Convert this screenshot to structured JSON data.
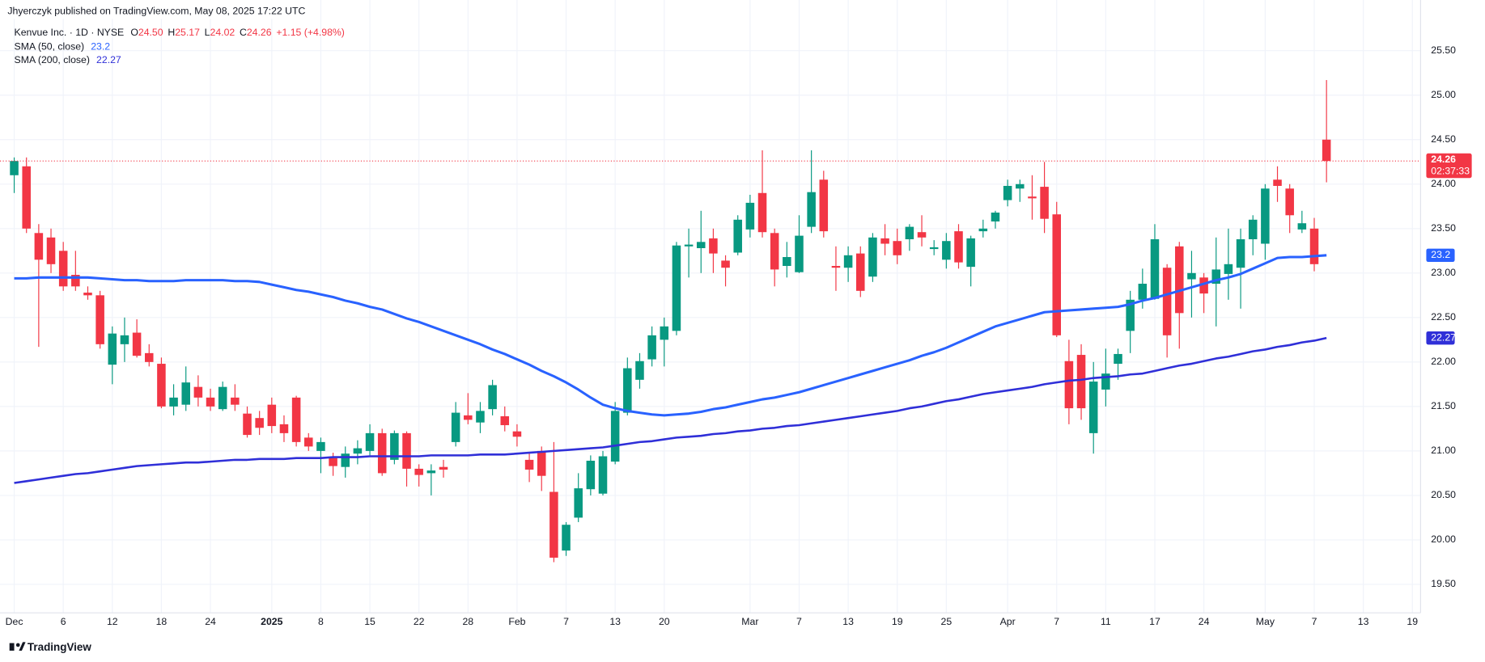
{
  "published": "Jhyerczyk published on TradingView.com, May 08, 2025 17:22 UTC",
  "brand": "TradingView",
  "chart_data": {
    "type": "candlestick",
    "title": "Kenvue Inc. · 1D · NYSE",
    "ohlc_header": [
      {
        "key": "O",
        "value": "24.50"
      },
      {
        "key": "H",
        "value": "25.17"
      },
      {
        "key": "L",
        "value": "24.02"
      },
      {
        "key": "C",
        "value": "24.26"
      }
    ],
    "change": "+1.15 (+4.98%)",
    "categories": [
      "Dec",
      null,
      null,
      null,
      "6",
      null,
      null,
      null,
      "12",
      null,
      null,
      null,
      "18",
      null,
      null,
      null,
      "24",
      null,
      null,
      null,
      null,
      "2025",
      null,
      null,
      null,
      "8",
      null,
      null,
      null,
      "15",
      null,
      null,
      null,
      "22",
      null,
      null,
      null,
      "28",
      null,
      null,
      null,
      "Feb",
      null,
      null,
      null,
      "7",
      null,
      null,
      null,
      "13",
      null,
      null,
      null,
      "20",
      null,
      null,
      null,
      null,
      null,
      null,
      "Mar",
      null,
      null,
      null,
      "7",
      null,
      null,
      null,
      "13",
      null,
      null,
      null,
      "19",
      null,
      null,
      null,
      "25",
      null,
      null,
      null,
      null,
      "Apr",
      null,
      null,
      null,
      "7",
      null,
      null,
      null,
      "11",
      null,
      null,
      null,
      "17",
      null,
      null,
      null,
      "24",
      null,
      null,
      null,
      null,
      "May",
      null,
      null,
      null,
      "7",
      null,
      null,
      null,
      "13",
      null,
      null,
      null,
      "19"
    ],
    "open": [
      24.1,
      24.2,
      23.45,
      23.4,
      23.25,
      22.98,
      22.78,
      22.75,
      21.97,
      22.2,
      22.33,
      22.1,
      21.98,
      21.5,
      21.52,
      21.72,
      21.6,
      21.47,
      21.6,
      21.42,
      21.37,
      21.52,
      21.3,
      21.6,
      21.15,
      21.0,
      20.92,
      20.82,
      20.97,
      21.0,
      21.2,
      20.9,
      21.2,
      20.8,
      20.75,
      20.82,
      21.1,
      21.4,
      21.32,
      21.47,
      21.39,
      21.22,
      20.9,
      21.0,
      20.54,
      19.88,
      20.25,
      20.57,
      20.52,
      20.88,
      21.43,
      21.8,
      22.03,
      22.25,
      22.35,
      23.3,
      23.28,
      23.39,
      23.14,
      23.23,
      23.49,
      23.9,
      23.45,
      23.08,
      23.01,
      23.52,
      24.05,
      23.08,
      23.06,
      23.22,
      22.96,
      23.39,
      23.36,
      23.38,
      23.46,
      23.27,
      23.15,
      23.47,
      23.07,
      23.47,
      23.58,
      23.82,
      23.95,
      23.86,
      23.97,
      23.66,
      22.01,
      22.08,
      21.2,
      21.69,
      21.98,
      22.35,
      22.7,
      22.71,
      23.06,
      23.3,
      22.93,
      22.95,
      22.88,
      22.99,
      23.06,
      23.38,
      23.33,
      24.05,
      23.95,
      23.49,
      23.5,
      24.5,
      null,
      null,
      null,
      null,
      null,
      null,
      null
    ],
    "high": [
      24.3,
      24.3,
      23.55,
      23.5,
      23.35,
      23.25,
      22.85,
      22.8,
      22.4,
      22.5,
      22.48,
      22.2,
      22.05,
      21.75,
      21.95,
      21.85,
      21.7,
      21.78,
      21.75,
      21.5,
      21.45,
      21.6,
      21.4,
      21.62,
      21.2,
      21.15,
      20.98,
      21.05,
      21.12,
      21.3,
      21.25,
      21.23,
      21.22,
      20.85,
      20.85,
      20.9,
      21.55,
      21.65,
      21.55,
      21.8,
      21.5,
      21.3,
      20.98,
      21.05,
      21.1,
      20.2,
      20.75,
      20.95,
      21.0,
      21.55,
      22.05,
      22.1,
      22.4,
      22.5,
      23.35,
      23.5,
      23.7,
      23.5,
      23.2,
      23.65,
      23.88,
      24.38,
      23.5,
      23.35,
      23.65,
      24.38,
      24.15,
      23.3,
      23.3,
      23.3,
      23.45,
      23.55,
      23.5,
      23.55,
      23.65,
      23.37,
      23.45,
      23.55,
      23.42,
      23.6,
      23.7,
      24.05,
      24.05,
      24.1,
      24.25,
      23.8,
      22.25,
      22.2,
      22.0,
      22.15,
      22.15,
      22.8,
      23.05,
      23.55,
      23.1,
      23.35,
      23.25,
      23.0,
      23.4,
      23.5,
      23.5,
      23.65,
      24.0,
      24.2,
      24.0,
      23.7,
      23.62,
      25.17,
      null,
      null,
      null,
      null,
      null,
      null,
      null
    ],
    "low": [
      23.9,
      23.45,
      22.17,
      23.0,
      22.8,
      22.8,
      22.7,
      22.15,
      21.75,
      22.0,
      22.05,
      21.95,
      21.48,
      21.4,
      21.45,
      21.5,
      21.45,
      21.45,
      21.45,
      21.15,
      21.18,
      21.2,
      21.1,
      21.05,
      21.0,
      20.75,
      20.72,
      20.7,
      20.85,
      20.95,
      20.72,
      20.85,
      20.6,
      20.6,
      20.5,
      20.7,
      21.05,
      21.3,
      21.2,
      21.4,
      21.22,
      21.05,
      20.65,
      20.55,
      19.75,
      19.82,
      20.2,
      20.5,
      20.5,
      20.85,
      21.4,
      21.7,
      21.95,
      21.95,
      22.3,
      22.95,
      23.0,
      23.0,
      22.85,
      23.2,
      23.4,
      23.4,
      22.85,
      22.95,
      23.0,
      23.45,
      23.4,
      22.8,
      22.9,
      22.73,
      22.9,
      23.2,
      23.1,
      23.25,
      23.3,
      23.2,
      23.05,
      23.05,
      22.85,
      23.4,
      23.5,
      23.75,
      23.8,
      23.6,
      23.45,
      22.28,
      21.3,
      21.35,
      20.97,
      21.5,
      21.8,
      22.1,
      22.6,
      22.7,
      22.05,
      22.15,
      22.5,
      22.55,
      22.4,
      22.7,
      22.6,
      23.2,
      23.15,
      23.8,
      23.45,
      23.45,
      23.02,
      24.02,
      null,
      null,
      null,
      null,
      null,
      null,
      null
    ],
    "close": [
      24.26,
      23.5,
      23.15,
      23.1,
      22.85,
      22.85,
      22.75,
      22.2,
      22.32,
      22.3,
      22.07,
      22.0,
      21.5,
      21.6,
      21.77,
      21.6,
      21.5,
      21.72,
      21.52,
      21.18,
      21.26,
      21.28,
      21.2,
      21.1,
      21.05,
      21.1,
      20.83,
      20.97,
      21.03,
      21.2,
      20.75,
      21.2,
      20.8,
      20.73,
      20.78,
      20.79,
      21.43,
      21.35,
      21.45,
      21.74,
      21.29,
      21.16,
      20.79,
      20.72,
      19.8,
      20.17,
      20.58,
      20.89,
      20.94,
      21.45,
      21.93,
      22.01,
      22.3,
      22.4,
      23.31,
      23.32,
      23.35,
      23.22,
      23.06,
      23.6,
      23.79,
      23.46,
      23.04,
      23.18,
      23.42,
      23.91,
      23.47,
      23.06,
      23.2,
      22.8,
      23.4,
      23.33,
      23.2,
      23.52,
      23.4,
      23.29,
      23.36,
      23.12,
      23.39,
      23.5,
      23.68,
      23.98,
      24.0,
      23.84,
      23.61,
      22.3,
      21.48,
      21.48,
      21.78,
      21.87,
      22.09,
      22.7,
      22.88,
      23.38,
      22.3,
      22.55,
      23.0,
      22.77,
      23.04,
      23.1,
      23.38,
      23.6,
      23.95,
      23.98,
      23.65,
      23.56,
      23.1,
      24.26,
      null,
      null,
      null,
      null,
      null,
      null,
      null
    ],
    "up_color": "#089981",
    "down_color": "#f23645",
    "series": [
      {
        "name": "SMA (50, close)",
        "color": "#2962ff",
        "last_label": "23.2",
        "values": [
          22.94,
          22.94,
          22.95,
          22.95,
          22.95,
          22.95,
          22.95,
          22.94,
          22.93,
          22.92,
          22.92,
          22.91,
          22.91,
          22.91,
          22.92,
          22.92,
          22.92,
          22.92,
          22.91,
          22.91,
          22.9,
          22.87,
          22.84,
          22.81,
          22.79,
          22.76,
          22.73,
          22.69,
          22.66,
          22.62,
          22.59,
          22.54,
          22.49,
          22.45,
          22.4,
          22.35,
          22.3,
          22.25,
          22.2,
          22.14,
          22.09,
          22.03,
          21.97,
          21.9,
          21.84,
          21.77,
          21.69,
          21.6,
          21.52,
          21.48,
          21.45,
          21.43,
          21.41,
          21.4,
          21.41,
          21.42,
          21.44,
          21.47,
          21.49,
          21.52,
          21.55,
          21.58,
          21.6,
          21.63,
          21.66,
          21.7,
          21.74,
          21.78,
          21.82,
          21.86,
          21.9,
          21.94,
          21.98,
          22.02,
          22.07,
          22.11,
          22.16,
          22.22,
          22.28,
          22.34,
          22.4,
          22.44,
          22.48,
          22.52,
          22.56,
          22.57,
          22.58,
          22.59,
          22.6,
          22.61,
          22.62,
          22.65,
          22.69,
          22.72,
          22.76,
          22.8,
          22.84,
          22.88,
          22.92,
          22.95,
          22.99,
          23.05,
          23.11,
          23.17,
          23.18,
          23.18,
          23.19,
          23.2,
          null,
          null,
          null,
          null,
          null,
          null,
          null
        ]
      },
      {
        "name": "SMA (200, close)",
        "color": "#2f2fd8",
        "last_label": "22.27",
        "values": [
          20.64,
          20.66,
          20.68,
          20.7,
          20.72,
          20.74,
          20.75,
          20.77,
          20.79,
          20.81,
          20.83,
          20.84,
          20.85,
          20.86,
          20.87,
          20.87,
          20.88,
          20.89,
          20.9,
          20.9,
          20.91,
          20.91,
          20.91,
          20.92,
          20.92,
          20.92,
          20.93,
          20.93,
          20.93,
          20.94,
          20.94,
          20.94,
          20.94,
          20.94,
          20.95,
          20.95,
          20.95,
          20.95,
          20.96,
          20.96,
          20.96,
          20.97,
          20.98,
          20.99,
          21.0,
          21.01,
          21.02,
          21.03,
          21.04,
          21.06,
          21.08,
          21.1,
          21.11,
          21.13,
          21.15,
          21.16,
          21.17,
          21.19,
          21.2,
          21.22,
          21.23,
          21.25,
          21.26,
          21.28,
          21.29,
          21.31,
          21.33,
          21.35,
          21.37,
          21.39,
          21.41,
          21.43,
          21.45,
          21.48,
          21.5,
          21.53,
          21.56,
          21.58,
          21.61,
          21.64,
          21.66,
          21.68,
          21.7,
          21.72,
          21.75,
          21.77,
          21.79,
          21.8,
          21.82,
          21.83,
          21.84,
          21.86,
          21.87,
          21.9,
          21.93,
          21.96,
          21.98,
          22.01,
          22.04,
          22.06,
          22.09,
          22.12,
          22.14,
          22.17,
          22.19,
          22.22,
          22.24,
          22.27,
          null,
          null,
          null,
          null,
          null,
          null,
          null
        ]
      }
    ],
    "last_price": {
      "value": 24.26,
      "label": "24.26",
      "countdown": "02:37:33"
    },
    "ylim": [
      19.18,
      26.07
    ],
    "yticks": [
      {
        "value": 19.5,
        "label": "19.50"
      },
      {
        "value": 20,
        "label": "20.00"
      },
      {
        "value": 20.5,
        "label": "20.50"
      },
      {
        "value": 21,
        "label": "21.00"
      },
      {
        "value": 21.5,
        "label": "21.50"
      },
      {
        "value": 22,
        "label": "22.00"
      },
      {
        "value": 22.5,
        "label": "22.50"
      },
      {
        "value": 23,
        "label": "23.00"
      },
      {
        "value": 23.5,
        "label": "23.50"
      },
      {
        "value": 24,
        "label": "24.00"
      },
      {
        "value": 24.5,
        "label": "24.50"
      },
      {
        "value": 25,
        "label": "25.00"
      },
      {
        "value": 25.5,
        "label": "25.50"
      }
    ],
    "grid": true
  }
}
